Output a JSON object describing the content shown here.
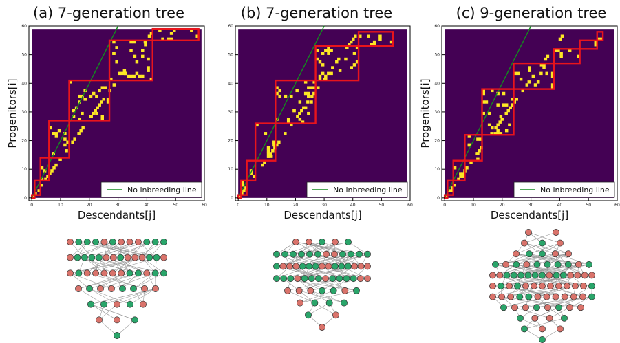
{
  "chart_data": [
    {
      "type": "heatmap",
      "title": "(a) 7-generation tree",
      "xlabel": "Descendants[j]",
      "ylabel": "Progenitors[i]",
      "xlim": [
        -1,
        60
      ],
      "ylim": [
        -1,
        60
      ],
      "xticks": [
        "0",
        "10",
        "20",
        "30",
        "40",
        "50",
        "60"
      ],
      "yticks": [
        "0",
        "10",
        "20",
        "30",
        "40",
        "50",
        "60"
      ],
      "colors": {
        "background": "#440154",
        "cell": "#fde725",
        "box": "#e8141c",
        "line": "#138a1f"
      },
      "legend": {
        "position": "bottom-right",
        "label": "No inbreeding line"
      },
      "line": {
        "label": "No inbreeding line",
        "x": [
          0,
          60
        ],
        "y": [
          0,
          60
        ]
      },
      "generation_boxes": [
        {
          "x": [
            0,
            1
          ],
          "y": [
            0,
            1
          ]
        },
        {
          "x": [
            1,
            3
          ],
          "y": [
            1,
            6
          ]
        },
        {
          "x": [
            3,
            6
          ],
          "y": [
            6,
            14
          ]
        },
        {
          "x": [
            6,
            13
          ],
          "y": [
            14,
            27
          ]
        },
        {
          "x": [
            13,
            27
          ],
          "y": [
            27,
            41
          ]
        },
        {
          "x": [
            27,
            42
          ],
          "y": [
            41,
            55
          ]
        },
        {
          "x": [
            42,
            58
          ],
          "y": [
            55,
            59
          ]
        }
      ],
      "tree": {
        "levels": [
          12,
          14,
          12,
          8,
          5,
          3,
          1
        ]
      }
    },
    {
      "type": "heatmap",
      "title": "(b) 7-generation tree",
      "xlabel": "Descendants[j]",
      "ylabel": "",
      "xlim": [
        -1,
        60
      ],
      "ylim": [
        -1,
        60
      ],
      "xticks": [
        "0",
        "10",
        "20",
        "30",
        "40",
        "50",
        "60"
      ],
      "yticks": [
        "0",
        "10",
        "20",
        "30",
        "40",
        "50",
        "60"
      ],
      "colors": {
        "background": "#440154",
        "cell": "#fde725",
        "box": "#e8141c",
        "line": "#138a1f"
      },
      "legend": {
        "position": "bottom-right",
        "label": "No inbreeding line"
      },
      "line": {
        "label": "No inbreeding line",
        "x": [
          0,
          60
        ],
        "y": [
          0,
          60
        ]
      },
      "generation_boxes": [
        {
          "x": [
            0,
            1
          ],
          "y": [
            0,
            1
          ]
        },
        {
          "x": [
            1,
            3
          ],
          "y": [
            1,
            6
          ]
        },
        {
          "x": [
            3,
            6
          ],
          "y": [
            6,
            13
          ]
        },
        {
          "x": [
            6,
            13
          ],
          "y": [
            13,
            26
          ]
        },
        {
          "x": [
            13,
            27
          ],
          "y": [
            26,
            41
          ]
        },
        {
          "x": [
            27,
            42
          ],
          "y": [
            41,
            53
          ]
        },
        {
          "x": [
            42,
            54
          ],
          "y": [
            53,
            58
          ]
        }
      ],
      "tree": {
        "levels": [
          5,
          12,
          15,
          14,
          7,
          4,
          2,
          1
        ]
      }
    },
    {
      "type": "heatmap",
      "title": "(c) 9-generation tree",
      "xlabel": "Descendants[j]",
      "ylabel": "Progenitors[i]",
      "xlim": [
        -1,
        60
      ],
      "ylim": [
        -1,
        60
      ],
      "xticks": [
        "0",
        "10",
        "20",
        "30",
        "40",
        "50",
        "60"
      ],
      "yticks": [
        "0",
        "10",
        "20",
        "30",
        "40",
        "50",
        "60"
      ],
      "colors": {
        "background": "#440154",
        "cell": "#fde725",
        "box": "#e8141c",
        "line": "#138a1f"
      },
      "legend": {
        "position": "bottom-right",
        "label": "No inbreeding line"
      },
      "line": {
        "label": "No inbreeding line",
        "x": [
          0,
          60
        ],
        "y": [
          0,
          60
        ]
      },
      "generation_boxes": [
        {
          "x": [
            0,
            1
          ],
          "y": [
            0,
            1
          ]
        },
        {
          "x": [
            1,
            3
          ],
          "y": [
            1,
            6
          ]
        },
        {
          "x": [
            3,
            7
          ],
          "y": [
            6,
            13
          ]
        },
        {
          "x": [
            7,
            13
          ],
          "y": [
            13,
            22
          ]
        },
        {
          "x": [
            13,
            24
          ],
          "y": [
            22,
            38
          ]
        },
        {
          "x": [
            24,
            38
          ],
          "y": [
            38,
            47
          ]
        },
        {
          "x": [
            38,
            47
          ],
          "y": [
            47,
            52
          ]
        },
        {
          "x": [
            47,
            53
          ],
          "y": [
            52,
            55
          ]
        },
        {
          "x": [
            53,
            55
          ],
          "y": [
            55,
            58
          ]
        }
      ],
      "tree": {
        "levels": [
          2,
          3,
          5,
          10,
          15,
          13,
          12,
          8,
          4,
          3,
          1
        ]
      }
    }
  ]
}
